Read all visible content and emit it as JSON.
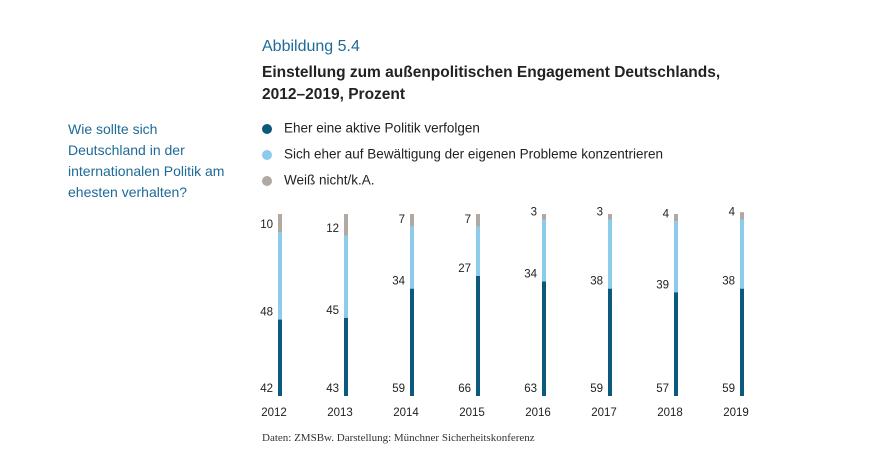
{
  "chart_data": {
    "type": "bar",
    "stacked": true,
    "title": "Abbildung 5.4",
    "subtitle": "Einstellung zum außenpolitischen Engagement Deutschlands, 2012–2019, Prozent",
    "question": "Wie sollte sich Deutschland in der internationalen Politik am ehesten verhalten?",
    "source": "Daten: ZMSBw. Darstellung: Münchner Sicherheitskonferenz",
    "categories": [
      "2012",
      "2013",
      "2014",
      "2015",
      "2016",
      "2017",
      "2018",
      "2019"
    ],
    "series": [
      {
        "name": "Eher eine aktive Politik verfolgen",
        "color": "#0b5a7e",
        "values": [
          42,
          43,
          59,
          66,
          63,
          59,
          57,
          59
        ]
      },
      {
        "name": "Sich eher auf Bewältigung der eigenen Probleme konzentrieren",
        "color": "#8ccbe9",
        "values": [
          48,
          45,
          34,
          27,
          34,
          38,
          39,
          38
        ]
      },
      {
        "name": "Weiß nicht/k.A.",
        "color": "#b0a8a3",
        "values": [
          10,
          12,
          7,
          7,
          3,
          3,
          4,
          4
        ]
      }
    ],
    "ylim": [
      0,
      100
    ]
  }
}
